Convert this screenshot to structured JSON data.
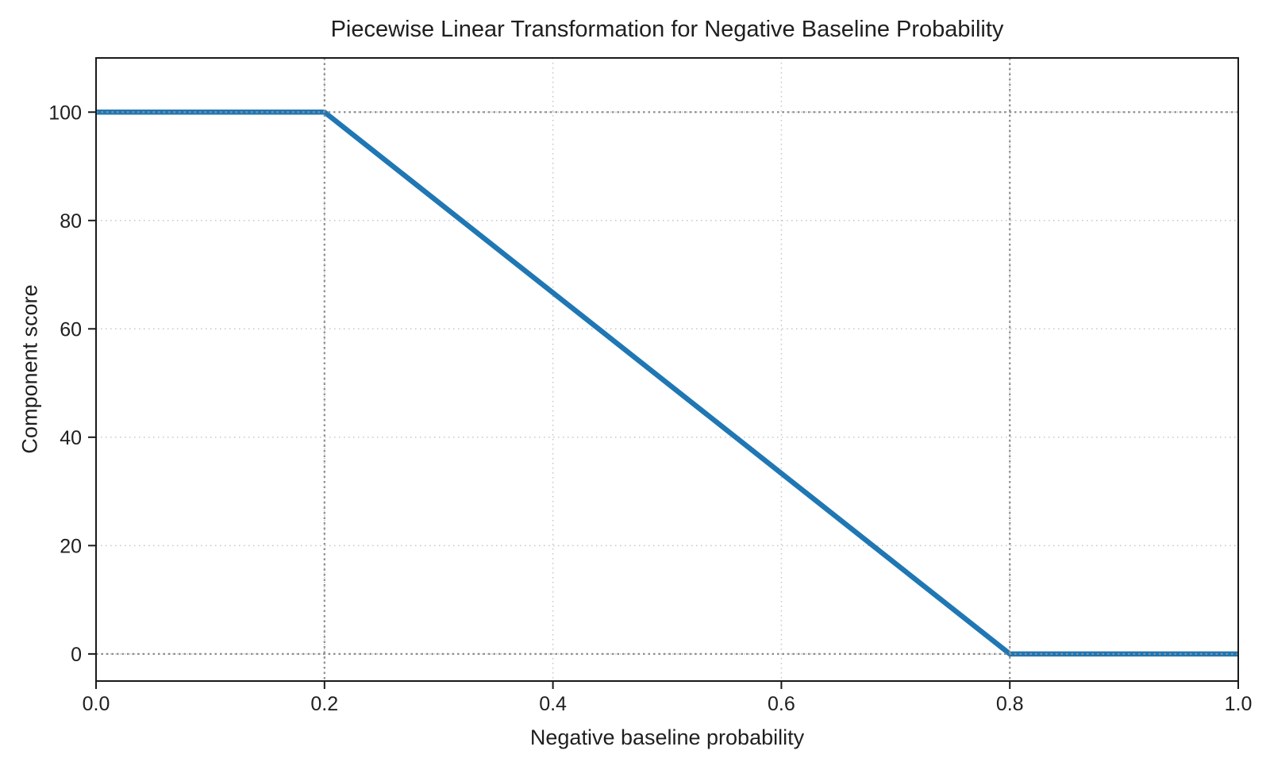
{
  "figure": {
    "background": "#ffffff"
  },
  "chart_data": {
    "type": "line",
    "title": "Piecewise Linear Transformation for Negative Baseline Probability",
    "xlabel": "Negative baseline probability",
    "ylabel": "Component score",
    "xlim": [
      0.0,
      1.0
    ],
    "ylim": [
      -5,
      110
    ],
    "x_ticks": [
      0.0,
      0.2,
      0.4,
      0.6,
      0.8,
      1.0
    ],
    "x_tick_labels": [
      "0.0",
      "0.2",
      "0.4",
      "0.6",
      "0.8",
      "1.0"
    ],
    "y_ticks": [
      0,
      20,
      40,
      60,
      80,
      100
    ],
    "y_tick_labels": [
      "0",
      "20",
      "40",
      "60",
      "80",
      "100"
    ],
    "grid": {
      "show": true,
      "color": "#c6c6c6",
      "style": "dotted"
    },
    "reference_lines": {
      "x": [
        0.2,
        0.8
      ],
      "y": [
        0,
        100
      ],
      "color": "#8e8e8e",
      "style": "dotted"
    },
    "series": [
      {
        "x": [
          0.0,
          0.2,
          0.8,
          1.0
        ],
        "y": [
          100,
          100,
          0,
          0
        ],
        "color": "#1f77b4"
      }
    ],
    "legend": {
      "show": false
    }
  },
  "style": {
    "axis_color": "#1a1a1a",
    "text_color": "#1f1f1f"
  }
}
